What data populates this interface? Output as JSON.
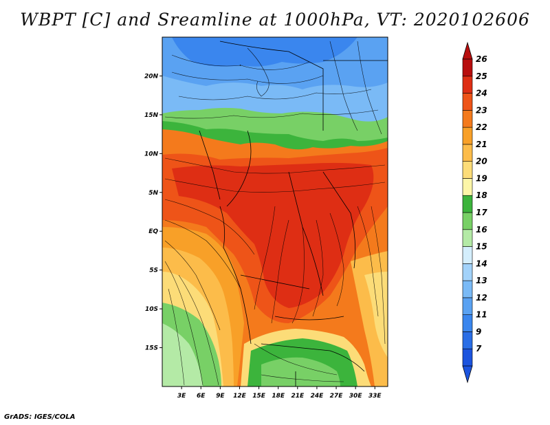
{
  "title": "WBPT [C] and Sreamline at 1000hPa, VT: 2020102606",
  "footer": "GrADS: IGES/COLA",
  "map": {
    "lon_range": [
      0,
      35
    ],
    "lat_range": [
      -20,
      25
    ],
    "lon_ticks": [
      {
        "value": 3,
        "label": "3E"
      },
      {
        "value": 6,
        "label": "6E"
      },
      {
        "value": 9,
        "label": "9E"
      },
      {
        "value": 12,
        "label": "12E"
      },
      {
        "value": 15,
        "label": "15E"
      },
      {
        "value": 18,
        "label": "18E"
      },
      {
        "value": 21,
        "label": "21E"
      },
      {
        "value": 24,
        "label": "24E"
      },
      {
        "value": 27,
        "label": "27E"
      },
      {
        "value": 30,
        "label": "30E"
      },
      {
        "value": 33,
        "label": "33E"
      }
    ],
    "lat_ticks": [
      {
        "value": 20,
        "label": "20N"
      },
      {
        "value": 15,
        "label": "15N"
      },
      {
        "value": 10,
        "label": "10N"
      },
      {
        "value": 5,
        "label": "5N"
      },
      {
        "value": 0,
        "label": "EQ"
      },
      {
        "value": -5,
        "label": "5S"
      },
      {
        "value": -10,
        "label": "10S"
      },
      {
        "value": -15,
        "label": "15S"
      }
    ]
  },
  "colorbar": {
    "levels": [
      {
        "label": "7",
        "color": "#1c54de"
      },
      {
        "label": "9",
        "color": "#2a6ee6"
      },
      {
        "label": "11",
        "color": "#3a86ee"
      },
      {
        "label": "12",
        "color": "#5aa2f2"
      },
      {
        "label": "13",
        "color": "#7abaf6"
      },
      {
        "label": "14",
        "color": "#a2d2fa"
      },
      {
        "label": "15",
        "color": "#d4eefc"
      },
      {
        "label": "16",
        "color": "#b4eaa6"
      },
      {
        "label": "17",
        "color": "#78d066"
      },
      {
        "label": "18",
        "color": "#3cb43c"
      },
      {
        "label": "19",
        "color": "#fcf6a8"
      },
      {
        "label": "20",
        "color": "#fcdc78"
      },
      {
        "label": "21",
        "color": "#fcbc4a"
      },
      {
        "label": "22",
        "color": "#f8a028"
      },
      {
        "label": "23",
        "color": "#f47a1c"
      },
      {
        "label": "24",
        "color": "#ee5418"
      },
      {
        "label": "25",
        "color": "#de2e14"
      },
      {
        "label": "26",
        "color": "#b80e0e"
      }
    ],
    "low_color": "#1c54de",
    "high_color": "#b80e0e"
  }
}
